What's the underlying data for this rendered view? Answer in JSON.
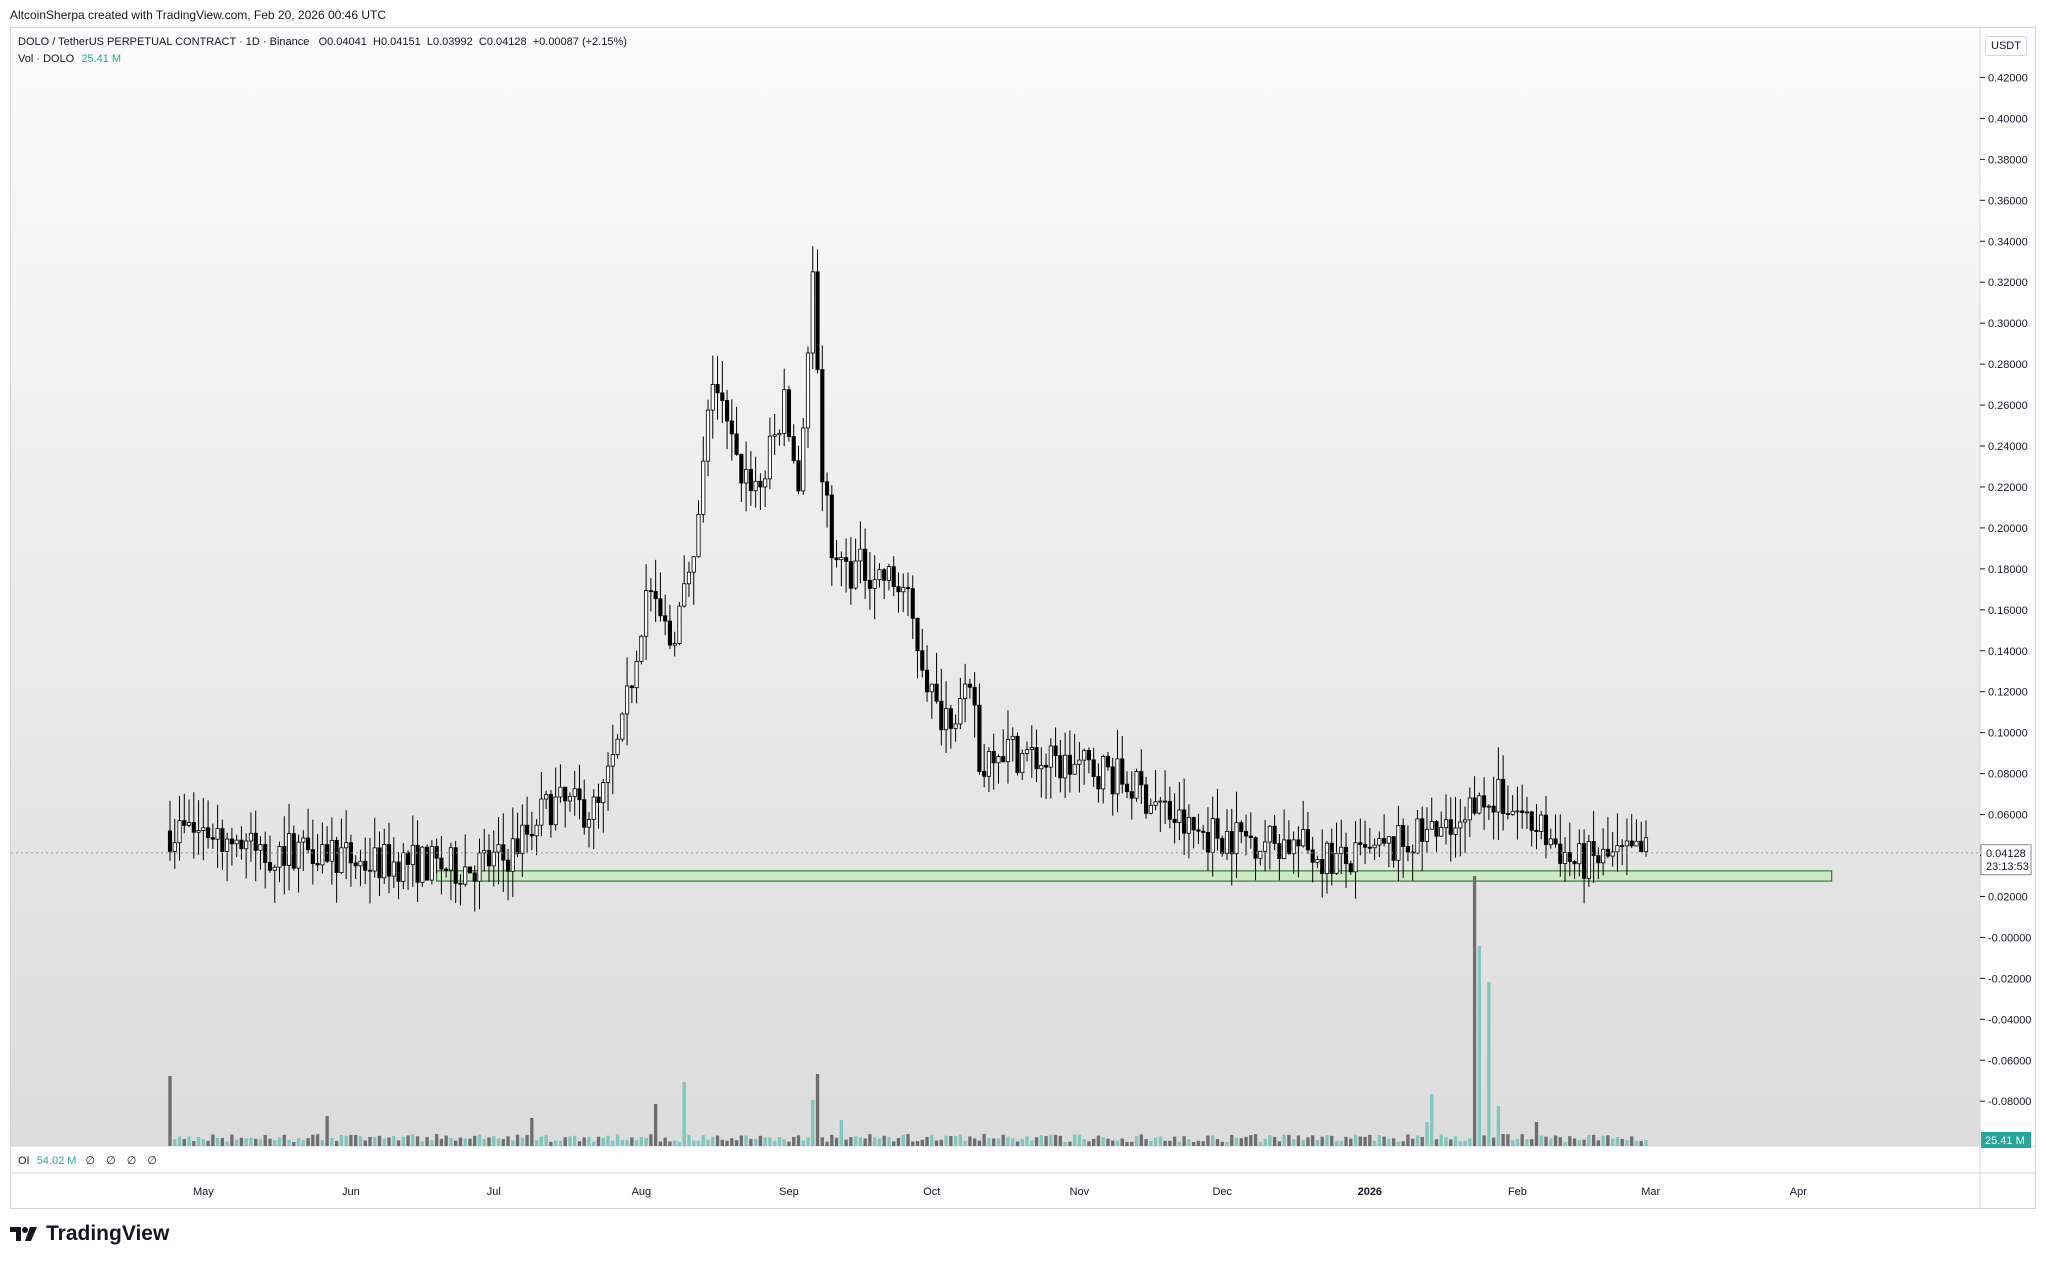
{
  "header": {
    "credit": "AltcoinSherpa created with TradingView.com, Feb 20, 2026 00:46 UTC"
  },
  "legend": {
    "symbol": "DOLO / TetherUS PERPETUAL CONTRACT · 1D · Binance",
    "o_label": "O",
    "o_value": "0.04041",
    "h_label": "H",
    "h_value": "0.04151",
    "l_label": "L",
    "l_value": "0.03992",
    "c_label": "C",
    "c_value": "0.04128",
    "change": "+0.00087 (+2.15%)",
    "vol_label": "Vol · DOLO",
    "vol_value": "25.41 M"
  },
  "oi": {
    "label": "OI",
    "value": "54.02 M",
    "na_values": "∅ ∅ ∅ ∅"
  },
  "brand": {
    "name": "TradingView"
  },
  "axis": {
    "unit": "USDT"
  },
  "badges": {
    "last_price": "0.04128",
    "countdown": "23:13:53",
    "volume": "25.41 M"
  },
  "colors": {
    "up": "#ffffff",
    "down": "#000000",
    "volume_up": "#7fc7bc",
    "volume_down": "#6e6e6e",
    "support_zone_fill": "#cfe9c4",
    "support_zone_border": "#2f7d32",
    "badge_green": "#26a69a"
  },
  "chart_data": {
    "type": "candlestick",
    "interval": "1D",
    "y_ticks": [
      "0.42000",
      "0.40000",
      "0.38000",
      "0.36000",
      "0.34000",
      "0.32000",
      "0.30000",
      "0.28000",
      "0.26000",
      "0.24000",
      "0.22000",
      "0.20000",
      "0.18000",
      "0.16000",
      "0.14000",
      "0.12000",
      "0.10000",
      "0.08000",
      "0.06000",
      "0.04000",
      "0.02000",
      "-0.00000",
      "-0.02000",
      "-0.04000",
      "-0.06000",
      "-0.08000"
    ],
    "ylim": [
      -0.1,
      0.43
    ],
    "x_labels": [
      "May",
      "Jun",
      "Jul",
      "Aug",
      "Sep",
      "Oct",
      "Nov",
      "Dec",
      "2026",
      "Feb",
      "Mar",
      "Apr"
    ],
    "first_date": "2025-04-24",
    "support_zone": {
      "low": 0.0275,
      "high": 0.0325,
      "from": "2025-06-19",
      "to": "2026-04-08"
    },
    "series": [
      {
        "name": "Price",
        "points": [
          [
            "2025-04-24",
            0.052
          ],
          [
            "2025-05-04",
            0.052
          ],
          [
            "2025-05-14",
            0.04
          ],
          [
            "2025-05-24",
            0.046
          ],
          [
            "2025-06-03",
            0.036
          ],
          [
            "2025-06-13",
            0.037
          ],
          [
            "2025-06-23",
            0.034
          ],
          [
            "2025-07-03",
            0.038
          ],
          [
            "2025-07-13",
            0.065
          ],
          [
            "2025-07-23",
            0.062
          ],
          [
            "2025-07-28",
            0.1
          ],
          [
            "2025-08-02",
            0.17
          ],
          [
            "2025-08-07",
            0.145
          ],
          [
            "2025-08-12",
            0.18
          ],
          [
            "2025-08-16",
            0.275
          ],
          [
            "2025-08-21",
            0.23
          ],
          [
            "2025-08-26",
            0.22
          ],
          [
            "2025-08-31",
            0.26
          ],
          [
            "2025-09-03",
            0.22
          ],
          [
            "2025-09-06",
            0.32
          ],
          [
            "2025-09-08",
            0.22
          ],
          [
            "2025-09-11",
            0.18
          ],
          [
            "2025-09-18",
            0.18
          ],
          [
            "2025-09-25",
            0.17
          ],
          [
            "2025-10-02",
            0.11
          ],
          [
            "2025-10-10",
            0.115
          ],
          [
            "2025-10-11",
            0.08
          ],
          [
            "2025-10-14",
            0.095
          ],
          [
            "2025-10-25",
            0.085
          ],
          [
            "2025-11-06",
            0.082
          ],
          [
            "2025-11-16",
            0.068
          ],
          [
            "2025-11-24",
            0.052
          ],
          [
            "2025-12-03",
            0.05
          ],
          [
            "2025-12-15",
            0.046
          ],
          [
            "2025-12-27",
            0.036
          ],
          [
            "2026-01-04",
            0.042
          ],
          [
            "2026-01-10",
            0.048
          ],
          [
            "2026-01-20",
            0.05
          ],
          [
            "2026-01-23",
            0.07
          ],
          [
            "2026-01-27",
            0.07
          ],
          [
            "2026-02-02",
            0.06
          ],
          [
            "2026-02-08",
            0.048
          ],
          [
            "2026-02-13",
            0.036
          ],
          [
            "2026-02-18",
            0.038
          ],
          [
            "2026-02-24",
            0.039
          ],
          [
            "2026-02-28",
            0.0413
          ]
        ]
      },
      {
        "name": "Volume",
        "points": [
          [
            "2025-04-24",
            35
          ],
          [
            "2025-05-04",
            4
          ],
          [
            "2025-05-27",
            15
          ],
          [
            "2025-07-09",
            14
          ],
          [
            "2025-08-04",
            21
          ],
          [
            "2025-08-10",
            32
          ],
          [
            "2025-09-06",
            23
          ],
          [
            "2025-09-07",
            36
          ],
          [
            "2025-09-12",
            13
          ],
          [
            "2026-01-13",
            12
          ],
          [
            "2026-01-14",
            26
          ],
          [
            "2026-01-23",
            135
          ],
          [
            "2026-01-24",
            100
          ],
          [
            "2026-01-26",
            82
          ],
          [
            "2026-01-28",
            20
          ],
          [
            "2026-02-05",
            12
          ],
          [
            "2026-02-28",
            3
          ]
        ]
      }
    ]
  }
}
